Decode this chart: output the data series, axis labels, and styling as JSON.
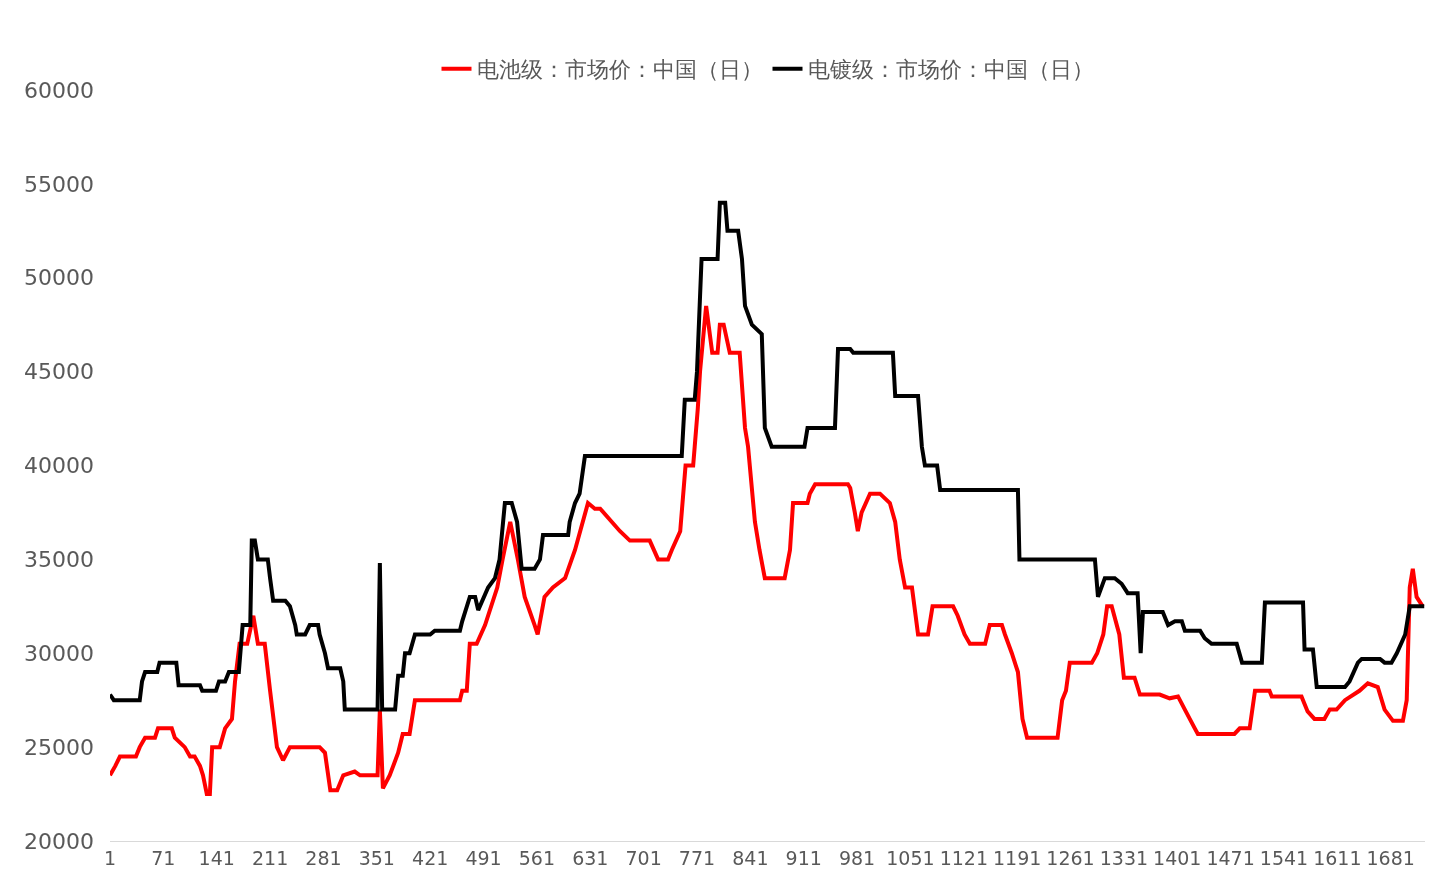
{
  "chart_data": {
    "type": "line",
    "legend": "top",
    "marker": "none",
    "line_style": "solid",
    "xlim": [
      1,
      1726
    ],
    "xticks": [
      1,
      71,
      141,
      211,
      281,
      351,
      421,
      491,
      561,
      631,
      701,
      771,
      841,
      911,
      981,
      1051,
      1121,
      1191,
      1261,
      1331,
      1401,
      1471,
      1541,
      1611,
      1681
    ],
    "ylim": [
      20000,
      60000
    ],
    "yticks": [
      20000,
      25000,
      30000,
      35000,
      40000,
      45000,
      50000,
      55000,
      60000
    ],
    "series": [
      {
        "name": "电池级：市场价：中国（日）",
        "color": "#ff0000",
        "x": [
          1,
          8,
          14,
          35,
          40,
          47,
          60,
          64,
          82,
          86,
          99,
          106,
          112,
          119,
          123,
          128,
          132,
          135,
          145,
          152,
          161,
          165,
          171,
          181,
          189,
          195,
          204,
          211,
          220,
          228,
          237,
          276,
          283,
          290,
          299,
          307,
          322,
          329,
          352,
          355,
          359,
          368,
          379,
          385,
          394,
          401,
          460,
          463,
          469,
          473,
          482,
          493,
          509,
          516,
          526,
          536,
          545,
          558,
          562,
          571,
          582,
          598,
          611,
          628,
          637,
          644,
          670,
          683,
          709,
          720,
          733,
          738,
          749,
          756,
          766,
          768,
          772,
          775,
          783,
          791,
          798,
          801,
          806,
          814,
          827,
          834,
          838,
          847,
          853,
          860,
          886,
          893,
          897,
          916,
          919,
          926,
          969,
          972,
          978,
          982,
          987,
          998,
          1011,
          1024,
          1031,
          1037,
          1044,
          1053,
          1061,
          1074,
          1080,
          1107,
          1113,
          1122,
          1129,
          1149,
          1155,
          1171,
          1175,
          1184,
          1192,
          1198,
          1204,
          1244,
          1250,
          1255,
          1260,
          1289,
          1296,
          1304,
          1309,
          1315,
          1325,
          1331,
          1345,
          1352,
          1378,
          1391,
          1402,
          1411,
          1424,
          1428,
          1476,
          1483,
          1496,
          1503,
          1522,
          1525,
          1564,
          1572,
          1581,
          1594,
          1601,
          1610,
          1621,
          1640,
          1651,
          1664,
          1673,
          1684,
          1697,
          1702,
          1706,
          1710,
          1715,
          1723
        ],
        "values": [
          23500,
          24000,
          24500,
          24500,
          25000,
          25500,
          25500,
          26000,
          26000,
          25500,
          25000,
          24500,
          24500,
          24000,
          23500,
          22500,
          22500,
          25000,
          25000,
          26000,
          26500,
          28500,
          30500,
          30500,
          32000,
          30500,
          30500,
          28000,
          25000,
          24300,
          25000,
          25000,
          24700,
          22700,
          22700,
          23500,
          23700,
          23500,
          23500,
          27000,
          22800,
          23500,
          24700,
          25700,
          25700,
          27500,
          27500,
          28000,
          28000,
          30500,
          30500,
          31500,
          33500,
          35000,
          37000,
          35000,
          33000,
          31500,
          31000,
          33000,
          33500,
          34000,
          35500,
          38000,
          37700,
          37700,
          36500,
          36000,
          36000,
          35000,
          35000,
          35500,
          36500,
          40000,
          40000,
          41000,
          43000,
          45000,
          48500,
          46000,
          46000,
          47500,
          47500,
          46000,
          46000,
          42000,
          41000,
          37000,
          35500,
          34000,
          34000,
          35500,
          38000,
          38000,
          38500,
          39000,
          39000,
          38800,
          37500,
          36500,
          37500,
          38500,
          38500,
          38000,
          37000,
          35000,
          33500,
          33500,
          31000,
          31000,
          32500,
          32500,
          32000,
          31000,
          30500,
          30500,
          31500,
          31500,
          31000,
          30000,
          29000,
          26500,
          25500,
          25500,
          27500,
          28000,
          29500,
          29500,
          30000,
          31000,
          32500,
          32500,
          31000,
          28700,
          28700,
          27800,
          27800,
          27600,
          27700,
          27000,
          26000,
          25700,
          25700,
          26000,
          26000,
          28000,
          28000,
          27700,
          27700,
          26900,
          26500,
          26500,
          27000,
          27000,
          27500,
          28000,
          28400,
          28200,
          27000,
          26400,
          26400,
          27500,
          33500,
          34500,
          33000,
          32500
        ]
      },
      {
        "name": "电镀级：市场价：中国（日）",
        "color": "#000000",
        "x": [
          1,
          6,
          40,
          43,
          47,
          63,
          66,
          88,
          91,
          119,
          122,
          140,
          144,
          152,
          157,
          170,
          175,
          185,
          187,
          191,
          195,
          208,
          211,
          215,
          231,
          237,
          244,
          246,
          257,
          263,
          274,
          276,
          283,
          287,
          303,
          307,
          309,
          352,
          355,
          358,
          375,
          379,
          385,
          388,
          394,
          401,
          421,
          427,
          460,
          463,
          473,
          480,
          484,
          497,
          506,
          512,
          519,
          528,
          535,
          541,
          558,
          565,
          569,
          602,
          604,
          611,
          617,
          624,
          751,
          755,
          768,
          771,
          777,
          798,
          801,
          808,
          811,
          825,
          830,
          834,
          843,
          856,
          860,
          869,
          912,
          916,
          952,
          956,
          972,
          976,
          1028,
          1031,
          1061,
          1066,
          1070,
          1086,
          1090,
          1192,
          1194,
          1293,
          1297,
          1306,
          1319,
          1328,
          1336,
          1349,
          1353,
          1356,
          1382,
          1389,
          1398,
          1407,
          1411,
          1431,
          1437,
          1446,
          1479,
          1486,
          1512,
          1516,
          1566,
          1568,
          1579,
          1584,
          1621,
          1627,
          1638,
          1643,
          1667,
          1673,
          1682,
          1689,
          1700,
          1706,
          1725
        ],
        "values": [
          27800,
          27500,
          27500,
          28500,
          29000,
          29000,
          29500,
          29500,
          28300,
          28300,
          28000,
          28000,
          28500,
          28500,
          29000,
          29000,
          31500,
          31500,
          36000,
          36000,
          35000,
          35000,
          34000,
          32800,
          32800,
          32500,
          31500,
          31000,
          31000,
          31500,
          31500,
          31000,
          30000,
          29200,
          29200,
          28500,
          27000,
          27000,
          34800,
          27000,
          27000,
          28800,
          28800,
          30000,
          30000,
          31000,
          31000,
          31200,
          31200,
          31700,
          33000,
          33000,
          32300,
          33500,
          34000,
          35000,
          38000,
          38000,
          37000,
          34500,
          34500,
          35000,
          36300,
          36300,
          37000,
          38000,
          38500,
          40500,
          40500,
          43500,
          43500,
          45000,
          51000,
          51000,
          54000,
          54000,
          52500,
          52500,
          51000,
          48500,
          47500,
          47000,
          42000,
          41000,
          41000,
          42000,
          42000,
          46200,
          46200,
          46000,
          46000,
          43700,
          43700,
          41000,
          40000,
          40000,
          38700,
          38700,
          35000,
          35000,
          33000,
          34000,
          34000,
          33700,
          33200,
          33200,
          30000,
          32200,
          32200,
          31500,
          31700,
          31700,
          31200,
          31200,
          30800,
          30500,
          30500,
          29500,
          29500,
          32700,
          32700,
          30200,
          30200,
          28200,
          28200,
          28500,
          29500,
          29700,
          29700,
          29500,
          29500,
          30000,
          31000,
          32500,
          32500
        ]
      }
    ]
  }
}
